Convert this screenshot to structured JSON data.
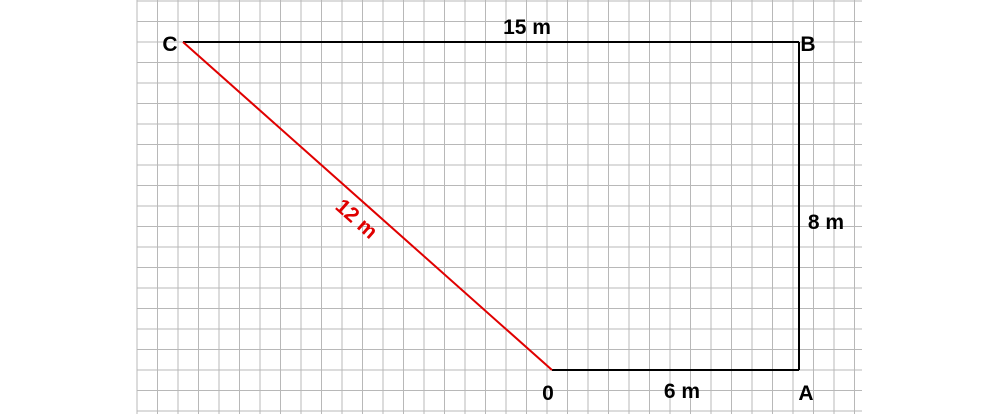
{
  "points": {
    "o": "0",
    "a": "A",
    "b": "B",
    "c": "C"
  },
  "segments": {
    "oa": "6 m",
    "ab": "8 m",
    "bc": "15 m",
    "co": "12 m"
  },
  "colors": {
    "grid": "#b8b8b8",
    "path": "#000000",
    "highlight": "#e00000",
    "text": "#000000"
  }
}
